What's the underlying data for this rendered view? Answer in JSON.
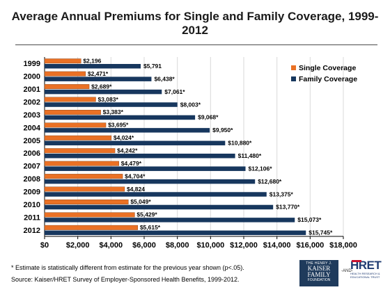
{
  "chart_data": {
    "type": "bar",
    "orientation": "horizontal",
    "title": "Average Annual Premiums for Single and Family Coverage, 1999-2012",
    "categories": [
      "1999",
      "2000",
      "2001",
      "2002",
      "2003",
      "2004",
      "2005",
      "2006",
      "2007",
      "2008",
      "2009",
      "2010",
      "2011",
      "2012"
    ],
    "series": [
      {
        "name": "Single Coverage",
        "color": "#ea7125",
        "values": [
          2196,
          2471,
          2689,
          3083,
          3383,
          3695,
          4024,
          4242,
          4479,
          4704,
          4824,
          5049,
          5429,
          5615
        ],
        "labels": [
          "$2,196",
          "$2,471*",
          "$2,689*",
          "$3,083*",
          "$3,383*",
          "$3,695*",
          "$4,024*",
          "$4,242*",
          "$4,479*",
          "$4,704*",
          "$4,824",
          "$5,049*",
          "$5,429*",
          "$5,615*"
        ]
      },
      {
        "name": "Family Coverage",
        "color": "#17375e",
        "values": [
          5791,
          6438,
          7061,
          8003,
          9068,
          9950,
          10880,
          11480,
          12106,
          12680,
          13375,
          13770,
          15073,
          15745
        ],
        "labels": [
          "$5,791",
          "$6,438*",
          "$7,061*",
          "$8,003*",
          "$9,068*",
          "$9,950*",
          "$10,880*",
          "$11,480*",
          "$12,106*",
          "$12,680*",
          "$13,375*",
          "$13,770*",
          "$15,073*",
          "$15,745*"
        ]
      }
    ],
    "xlim": [
      0,
      18000
    ],
    "xticks": [
      "$0",
      "$2,000",
      "$4,000",
      "$6,000",
      "$8,000",
      "$10,000",
      "$12,000",
      "$14,000",
      "$16,000",
      "$18,000"
    ],
    "grid": true,
    "legend": "top-right"
  },
  "footnote": "* Estimate is statistically different from estimate for the previous year shown (p<.05).",
  "source": "Source:  Kaiser/HRET Survey of Employer-Sponsored Health Benefits, 1999-2012.",
  "logos": {
    "kff": {
      "line1": "THE HENRY J.",
      "line2": "KAISER",
      "line3": "FAMILY",
      "line4": "FOUNDATION"
    },
    "and": "-AND-",
    "hret": {
      "word": "HRET",
      "sub1": "HEALTH RESEARCH &",
      "sub2": "EDUCATIONAL TRUST"
    }
  }
}
